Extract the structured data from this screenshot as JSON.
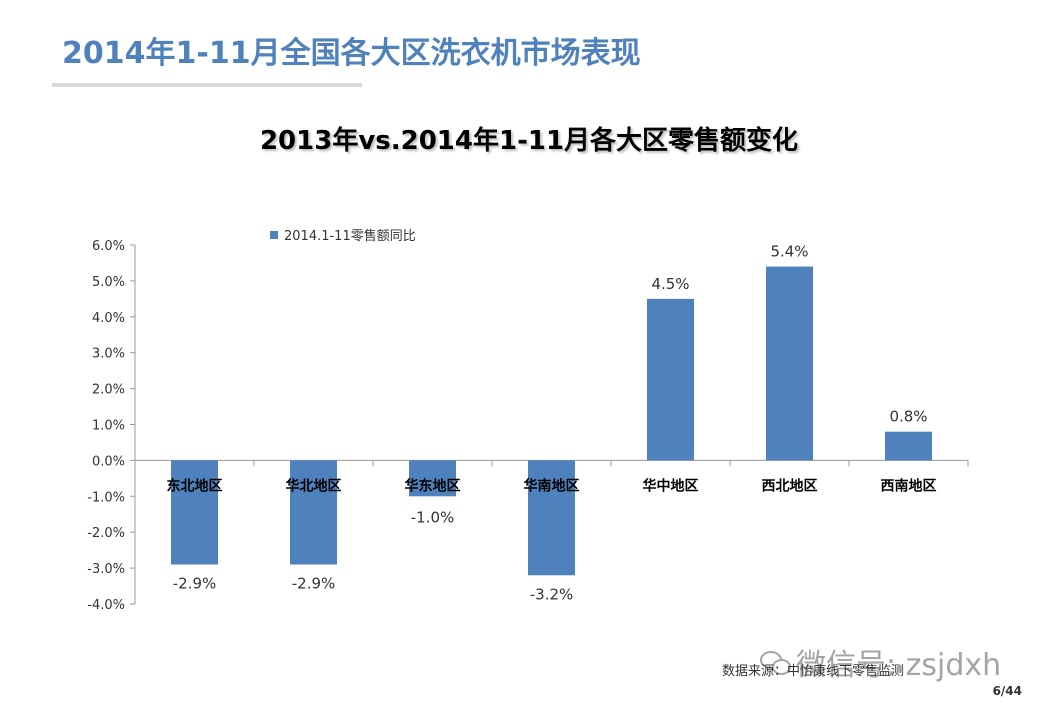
{
  "slide": {
    "title": "2014年1-11月全国各大区洗衣机市场表现",
    "page": "6/44",
    "source": "数据来源：中怡康线下零售监测",
    "watermark": "微信号: zsjdxh"
  },
  "chart_data": {
    "type": "bar",
    "title": "2013年vs.2014年1-11月各大区零售额变化",
    "categories": [
      "东北地区",
      "华北地区",
      "华东地区",
      "华南地区",
      "华中地区",
      "西北地区",
      "西南地区"
    ],
    "series": [
      {
        "name": "2014.1-11零售额同比",
        "values": [
          -2.9,
          -2.9,
          -1.0,
          -3.2,
          4.5,
          5.4,
          0.8
        ],
        "labels": [
          "-2.9%",
          "-2.9%",
          "-1.0%",
          "-3.2%",
          "4.5%",
          "5.4%",
          "0.8%"
        ]
      }
    ],
    "yticks": [
      "6.0%",
      "5.0%",
      "4.0%",
      "3.0%",
      "2.0%",
      "1.0%",
      "0.0%",
      "-1.0%",
      "-2.0%",
      "-3.0%",
      "-4.0%"
    ],
    "ylim": [
      -4,
      6
    ],
    "xlabel": "",
    "ylabel": "",
    "bar_color": "#4f81bd",
    "legend_position": "top-left",
    "grid": false
  }
}
